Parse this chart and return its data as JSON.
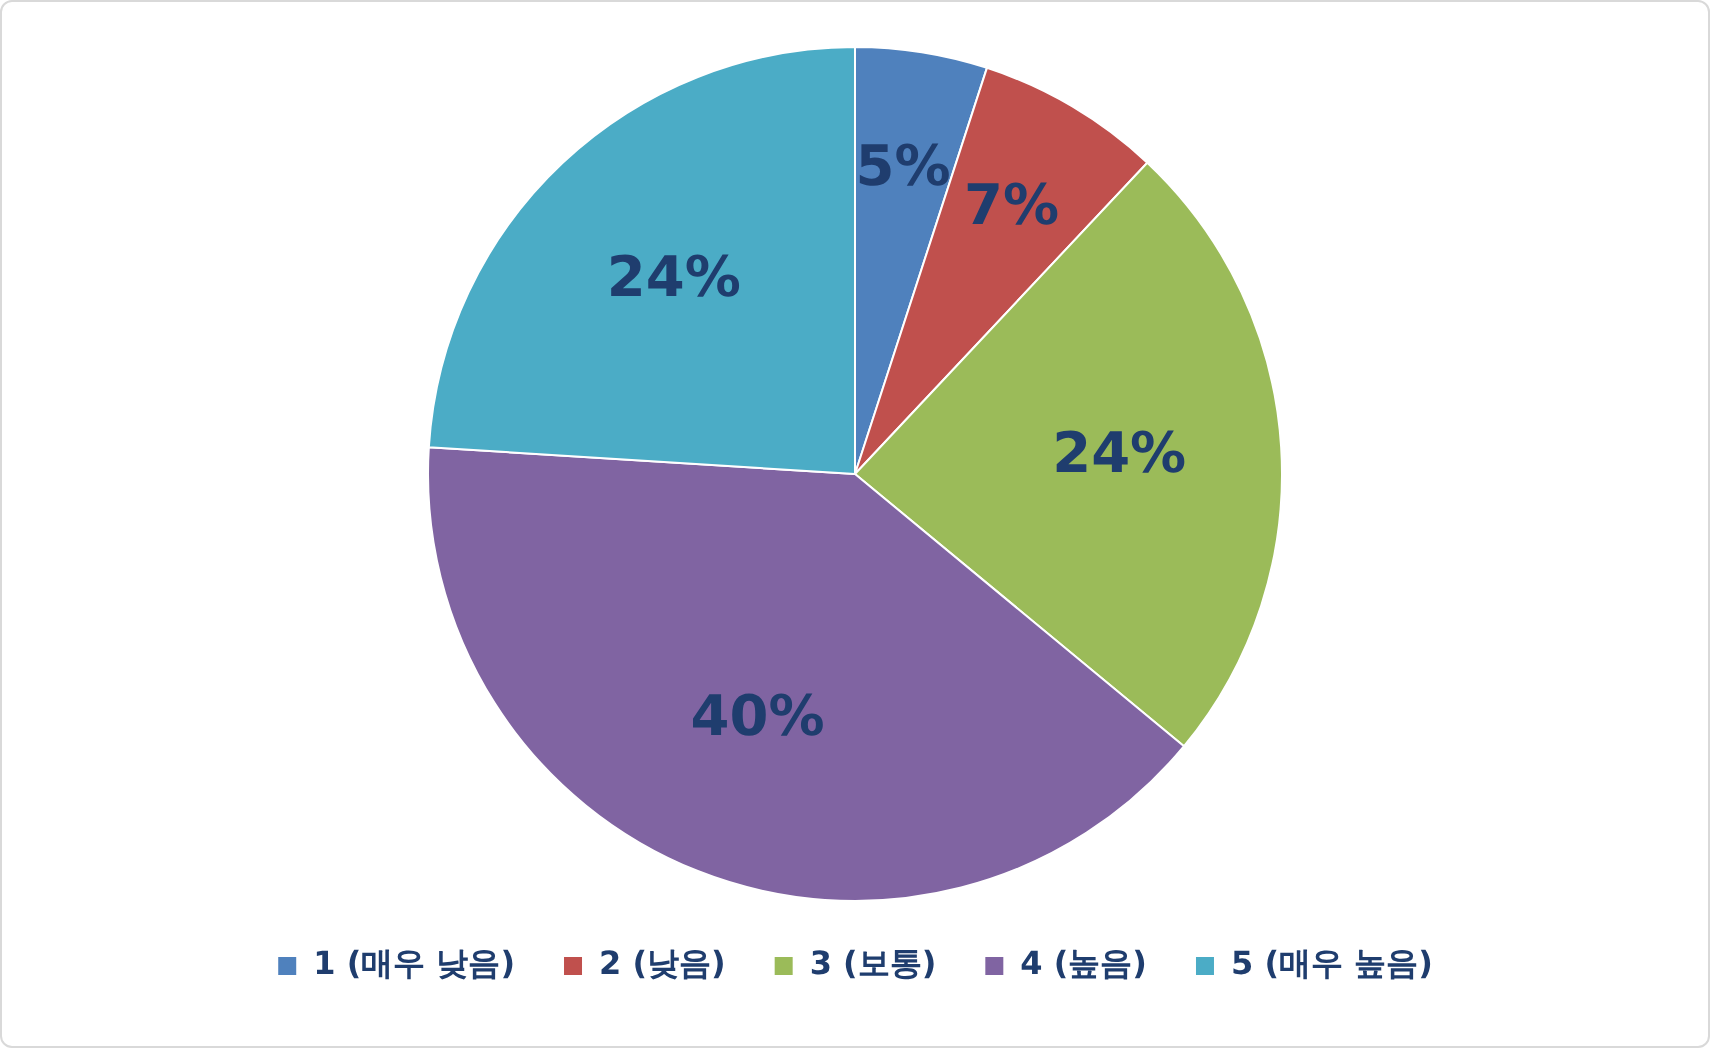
{
  "chart_data": {
    "type": "pie",
    "categories": [
      "1 (매우 낮음)",
      "2 (낮음)",
      "3 (보통)",
      "4 (높음)",
      "5 (매우 높음)"
    ],
    "values": [
      5,
      7,
      24,
      40,
      24
    ],
    "colors": [
      "#4f81bd",
      "#c0504d",
      "#9bbb59",
      "#8064a2",
      "#4bacc6"
    ],
    "value_labels": [
      "5%",
      "7%",
      "24%",
      "40%",
      "24%"
    ],
    "legend": "bottom"
  }
}
